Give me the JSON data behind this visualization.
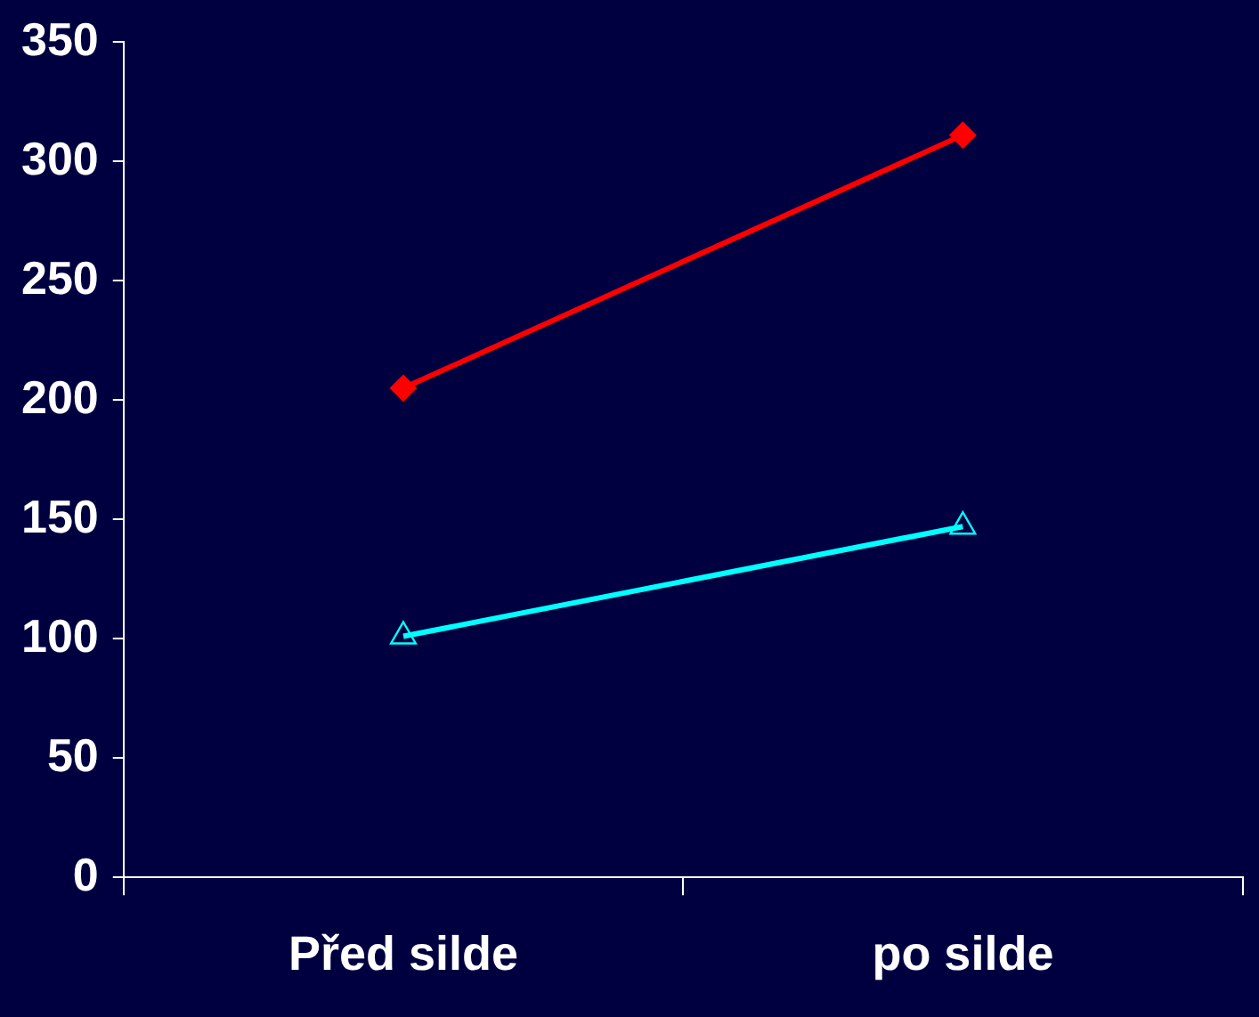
{
  "chart_data": {
    "type": "line",
    "categories": [
      "Před silde",
      "po silde"
    ],
    "series": [
      {
        "color": "#ff0000",
        "values": [
          205,
          311
        ],
        "marker": "diamond"
      },
      {
        "color": "#00ffff",
        "values": [
          101,
          147
        ],
        "marker": "triangle"
      }
    ],
    "ylim": [
      0,
      350
    ],
    "yticks": [
      0,
      50,
      100,
      150,
      200,
      250,
      300,
      350
    ],
    "grid": false,
    "legend": false,
    "line_style": "solid"
  }
}
